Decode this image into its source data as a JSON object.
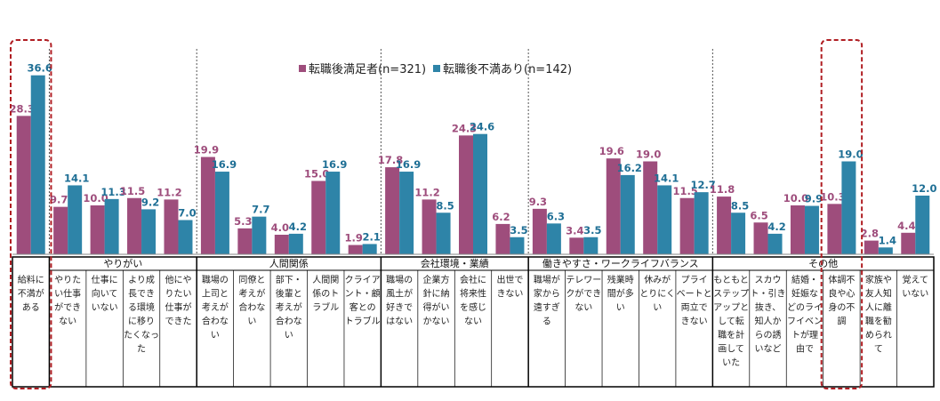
{
  "chart_data": {
    "type": "bar",
    "title": "",
    "xlabel": "",
    "ylabel": "",
    "ylim": [
      0,
      40
    ],
    "legend_position": "top-center",
    "series": [
      {
        "name": "転職後満足者(n=321)",
        "color": "#9e4d7c",
        "label_color": "#9e4d7c",
        "values": [
          28.3,
          9.7,
          10.0,
          11.5,
          11.2,
          19.9,
          5.3,
          4.0,
          15.0,
          1.9,
          17.8,
          11.2,
          24.3,
          6.2,
          9.3,
          3.4,
          19.6,
          19.0,
          11.5,
          11.8,
          6.5,
          10.0,
          10.3,
          2.8,
          4.4
        ]
      },
      {
        "name": "転職後不満あり(n=142)",
        "color": "#2e84a8",
        "label_color": "#1f6f95",
        "values": [
          36.6,
          14.1,
          11.3,
          9.2,
          7.0,
          16.9,
          7.7,
          4.2,
          16.9,
          2.1,
          16.9,
          8.5,
          24.6,
          3.5,
          6.3,
          3.5,
          16.2,
          14.1,
          12.7,
          8.5,
          4.2,
          9.9,
          19.0,
          1.4,
          12.0
        ]
      }
    ],
    "categories": [
      [
        "給料に",
        "不満が",
        "ある"
      ],
      [
        "やりた",
        "い仕事",
        "ができ",
        "ない"
      ],
      [
        "仕事に",
        "向いて",
        "いない"
      ],
      [
        "より成",
        "長でき",
        "る環境",
        "に移り",
        "たくなっ",
        "た"
      ],
      [
        "他にや",
        "りたい",
        "仕事が",
        "できた"
      ],
      [
        "職場の",
        "上司と",
        "考えが",
        "合わな",
        "い"
      ],
      [
        "同僚と",
        "考えが",
        "合わな",
        "い"
      ],
      [
        "部下・",
        "後輩と",
        "考えが",
        "合わな",
        "い"
      ],
      [
        "人間関",
        "係のト",
        "ラブル"
      ],
      [
        "クライア",
        "ント・顧",
        "客との",
        "トラブル"
      ],
      [
        "職場の",
        "風土が",
        "好きで",
        "はない"
      ],
      [
        "企業方",
        "針に納",
        "得がい",
        "かない"
      ],
      [
        "会社に",
        "将来性",
        "を感じ",
        "ない"
      ],
      [
        "出世で",
        "きない"
      ],
      [
        "職場が",
        "家から",
        "遠すぎ",
        "る"
      ],
      [
        "テレワー",
        "クができ",
        "ない"
      ],
      [
        "残業時",
        "間が多",
        "い"
      ],
      [
        "休みが",
        "とりにく",
        "い"
      ],
      [
        "プライ",
        "ベートと",
        "両立で",
        "きない"
      ],
      [
        "もともと",
        "ステップ",
        "アップと",
        "して転",
        "職を計",
        "画して",
        "いた"
      ],
      [
        "スカウ",
        "ト・引き",
        "抜き、",
        "知人か",
        "らの誘",
        "いなど"
      ],
      [
        "結婚・",
        "妊娠な",
        "どのライ",
        "フイベン",
        "トが理",
        "由で"
      ],
      [
        "体調不",
        "良や心",
        "身の不",
        "調"
      ],
      [
        "家族や",
        "友人知",
        "人に離",
        "職を勧",
        "められ",
        "て"
      ],
      [
        "覚えて",
        "いない"
      ]
    ],
    "groups": [
      {
        "label": "やりがい",
        "from": 1,
        "to": 4
      },
      {
        "label": "人間関係",
        "from": 5,
        "to": 9
      },
      {
        "label": "会社環境・業績",
        "from": 10,
        "to": 13
      },
      {
        "label": "働きやすさ・ワークライフバランス",
        "from": 14,
        "to": 18
      },
      {
        "label": "その他",
        "from": 19,
        "to": 24
      }
    ],
    "highlighted_categories": [
      0,
      22
    ],
    "highlight_color": "#b01e23"
  }
}
